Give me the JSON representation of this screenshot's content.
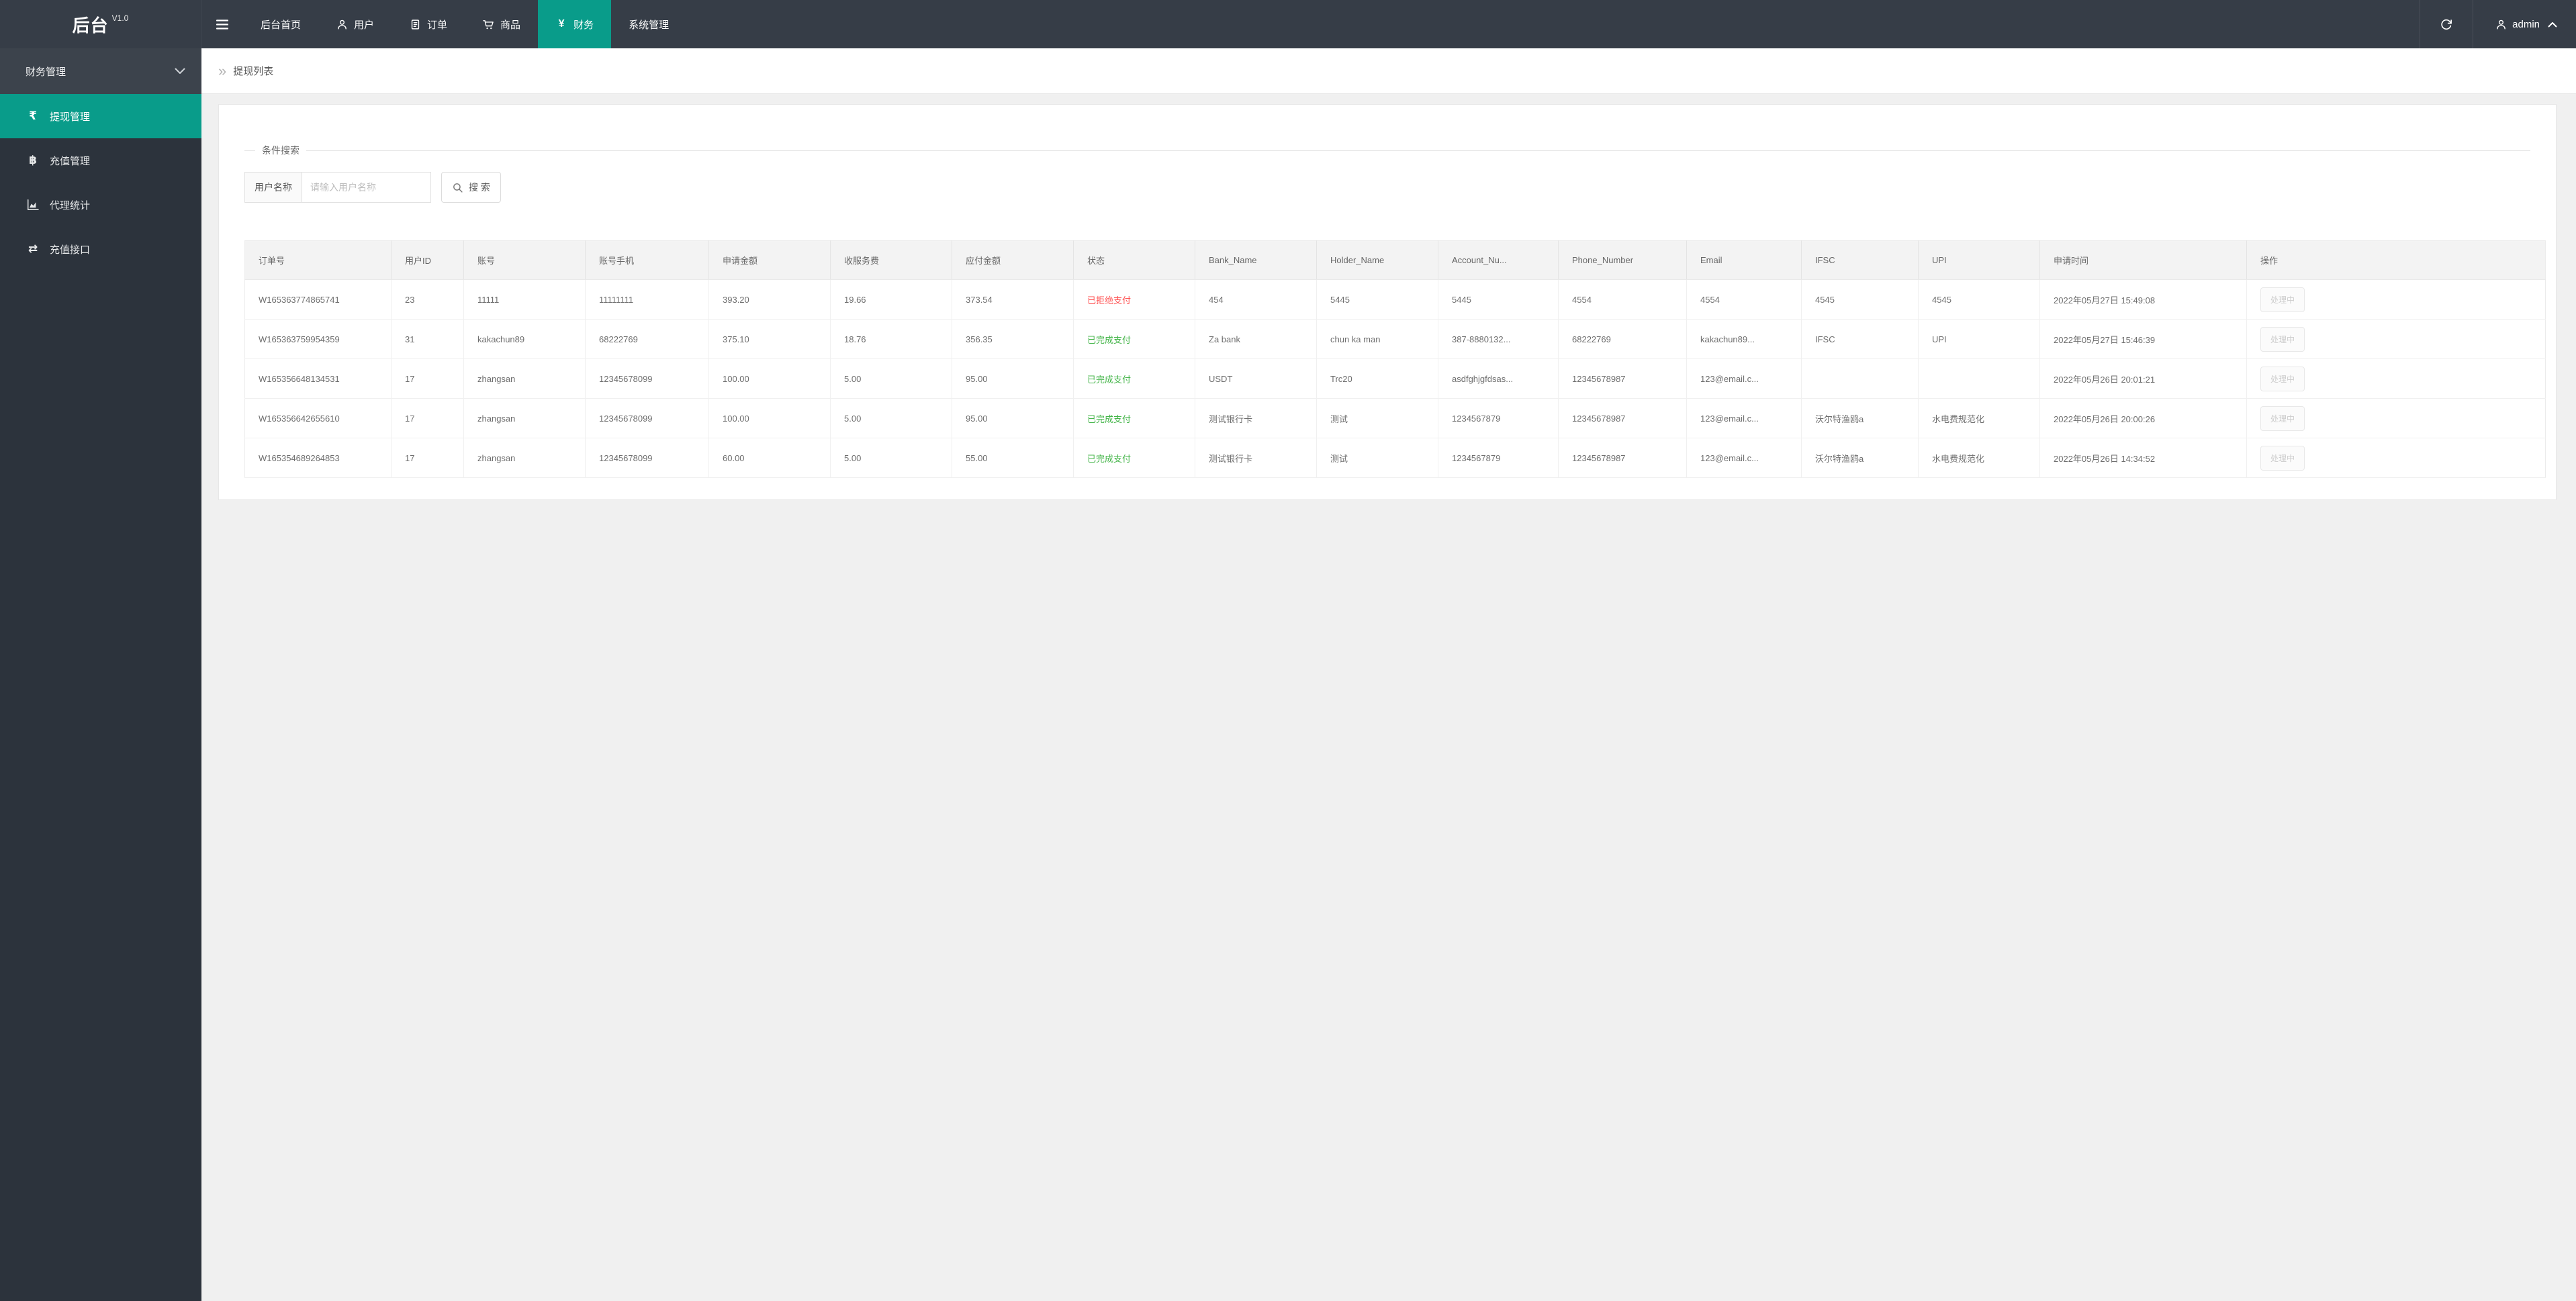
{
  "navbar": {
    "logo": "后台",
    "version": "V1.0",
    "items": [
      {
        "label": "后台首页",
        "icon": "",
        "active": false
      },
      {
        "label": "用户",
        "icon": "user-icon",
        "active": false
      },
      {
        "label": "订单",
        "icon": "order-icon",
        "active": false
      },
      {
        "label": "商品",
        "icon": "cart-icon",
        "active": false
      },
      {
        "label": "财务",
        "icon": "yen-icon",
        "active": true
      },
      {
        "label": "系统管理",
        "icon": "",
        "active": false
      }
    ],
    "username": "admin"
  },
  "icons": {
    "yen": "¥",
    "rupee": "₹",
    "baht": "฿",
    "exchange": "⇄",
    "breadcrumb_arrows": "»"
  },
  "sidebar": {
    "group_label": "财务管理",
    "items": [
      {
        "label": "提现管理",
        "icon": "rupee-icon",
        "active": true
      },
      {
        "label": "充值管理",
        "icon": "baht-icon",
        "active": false
      },
      {
        "label": "代理统计",
        "icon": "chart-icon",
        "active": false
      },
      {
        "label": "充值接口",
        "icon": "exchange-icon",
        "active": false
      }
    ]
  },
  "breadcrumb": {
    "title": "提现列表"
  },
  "search": {
    "legend": "条件搜索",
    "field_label": "用户名称",
    "placeholder": "请输入用户名称",
    "button_label": "搜 索"
  },
  "table": {
    "headers": [
      "订单号",
      "用户ID",
      "账号",
      "账号手机",
      "申请金额",
      "收服务费",
      "应付金额",
      "状态",
      "Bank_Name",
      "Holder_Name",
      "Account_Nu...",
      "Phone_Number",
      "Email",
      "IFSC",
      "UPI",
      "申请时间",
      "操作"
    ],
    "rows": [
      {
        "cells": [
          "W165363774865741",
          "23",
          "11111",
          "11111111",
          "393.20",
          "19.66",
          "373.54",
          "已拒绝支付",
          "454",
          "5445",
          "5445",
          "4554",
          "4554",
          "4545",
          "4545",
          "2022年05月27日 15:49:08"
        ],
        "status_type": "rejected",
        "action": "处理中"
      },
      {
        "cells": [
          "W165363759954359",
          "31",
          "kakachun89",
          "68222769",
          "375.10",
          "18.76",
          "356.35",
          "已完成支付",
          "Za bank",
          "chun ka man",
          "387-8880132...",
          "68222769",
          "kakachun89...",
          "IFSC",
          "UPI",
          "2022年05月27日 15:46:39"
        ],
        "status_type": "completed",
        "action": "处理中"
      },
      {
        "cells": [
          "W165356648134531",
          "17",
          "zhangsan",
          "12345678099",
          "100.00",
          "5.00",
          "95.00",
          "已完成支付",
          "USDT",
          "Trc20",
          "asdfghjgfdsas...",
          "12345678987",
          "123@email.c...",
          "",
          "",
          "2022年05月26日 20:01:21"
        ],
        "status_type": "completed",
        "action": "处理中"
      },
      {
        "cells": [
          "W165356642655610",
          "17",
          "zhangsan",
          "12345678099",
          "100.00",
          "5.00",
          "95.00",
          "已完成支付",
          "测试银行卡",
          "测试",
          "1234567879",
          "12345678987",
          "123@email.c...",
          "沃尔特渔鸥a",
          "水电费规范化",
          "2022年05月26日 20:00:26"
        ],
        "status_type": "completed",
        "action": "处理中"
      },
      {
        "cells": [
          "W165354689264853",
          "17",
          "zhangsan",
          "12345678099",
          "60.00",
          "5.00",
          "55.00",
          "已完成支付",
          "测试银行卡",
          "测试",
          "1234567879",
          "12345678987",
          "123@email.c...",
          "沃尔特渔鸥a",
          "水电费规范化",
          "2022年05月26日 14:34:52"
        ],
        "status_type": "completed",
        "action": "处理中"
      }
    ]
  },
  "colors": {
    "accent": "#099c8a",
    "navbar_bg": "#363d47",
    "sidebar_bg": "#2c333c",
    "status_rejected": "#ff5151",
    "status_completed": "#44b549"
  }
}
